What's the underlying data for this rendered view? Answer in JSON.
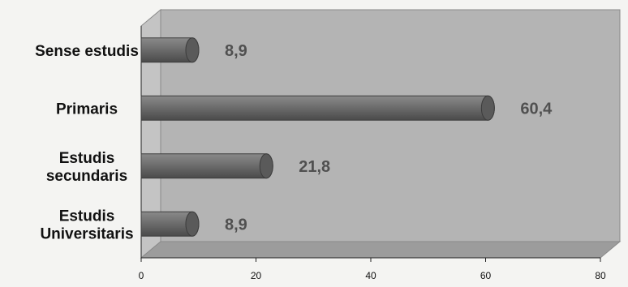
{
  "chart_data": {
    "type": "bar",
    "orientation": "horizontal",
    "categories": [
      [
        "Sense estudis"
      ],
      [
        "Primaris"
      ],
      [
        "Estudis",
        "secundaris"
      ],
      [
        "Estudis",
        "Universitaris"
      ]
    ],
    "values": [
      8.9,
      60.4,
      21.8,
      8.9
    ],
    "value_labels": [
      "8,9",
      "60,4",
      "21,8",
      "8,9"
    ],
    "xlim": [
      0,
      80
    ],
    "xticks": [
      0,
      20,
      40,
      60,
      80
    ],
    "title": "",
    "xlabel": "",
    "ylabel": "",
    "grid": false,
    "style": "3d-cylinder",
    "colors": {
      "bar": "#6e6e6e",
      "bar_highlight": "#8a8a8a",
      "bar_shadow": "#4a4a4a",
      "plot_back": "#b4b4b4",
      "plot_floor": "#9c9c9c",
      "plot_side": "#c4c4c4"
    }
  }
}
